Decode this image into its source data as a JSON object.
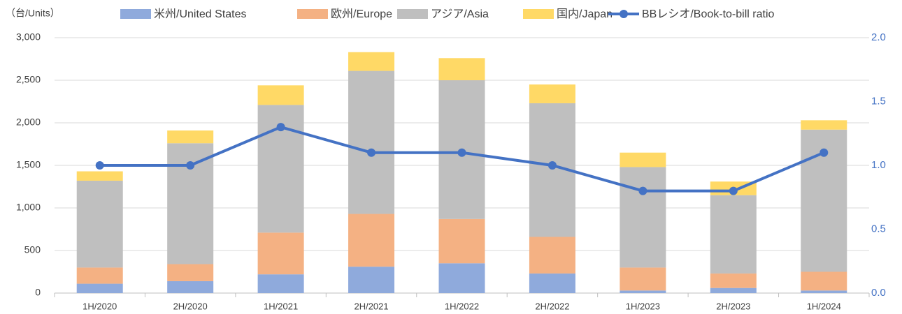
{
  "chart_data": {
    "type": "bar",
    "stacked": true,
    "y_label": "（台/Units）",
    "categories": [
      "1H/2020",
      "2H/2020",
      "1H/2021",
      "2H/2021",
      "1H/2022",
      "2H/2022",
      "1H/2023",
      "2H/2023",
      "1H/2024"
    ],
    "series": [
      {
        "name": "米州/United States",
        "color": "#8faadc",
        "values": [
          110,
          140,
          220,
          310,
          350,
          230,
          30,
          60,
          30
        ]
      },
      {
        "name": "欧州/Europe",
        "color": "#f4b183",
        "values": [
          190,
          200,
          490,
          620,
          520,
          430,
          270,
          170,
          220
        ]
      },
      {
        "name": "アジア/Asia",
        "color": "#bfbfbf",
        "values": [
          1020,
          1420,
          1500,
          1680,
          1630,
          1570,
          1180,
          920,
          1670
        ]
      },
      {
        "name": "国内/Japan",
        "color": "#ffd966",
        "values": [
          110,
          150,
          230,
          220,
          260,
          220,
          170,
          160,
          110
        ]
      },
      {
        "name": "BBレシオ/Book-to-bill ratio",
        "color": "#4472c4",
        "type": "line",
        "axis": "y2",
        "values": [
          1.0,
          1.0,
          1.3,
          1.1,
          1.1,
          1.0,
          0.8,
          0.8,
          1.1
        ]
      }
    ],
    "ylim": [
      0,
      3000
    ],
    "yticks": [
      0,
      500,
      {
        "value": 1000,
        "label": "1,000"
      },
      {
        "value": 1500,
        "label": "1,500"
      },
      {
        "value": 2000,
        "label": "2,000"
      },
      {
        "value": 2500,
        "label": "2,500"
      },
      {
        "value": 3000,
        "label": "3,000"
      }
    ],
    "y2lim": [
      0,
      2
    ],
    "y2ticks": [
      {
        "value": 0,
        "label": "0.0"
      },
      {
        "value": 0.5,
        "label": "0.5"
      },
      {
        "value": 1,
        "label": "1.0"
      },
      {
        "value": 1.5,
        "label": "1.5"
      },
      {
        "value": 2,
        "label": "2.0"
      }
    ],
    "grid": true
  }
}
